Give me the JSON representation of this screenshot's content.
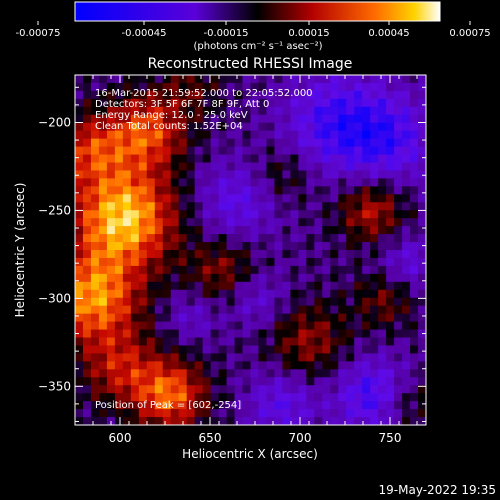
{
  "colorbar": {
    "ticks": [
      "-0.00075",
      "-0.00045",
      "-0.00015",
      "0.00015",
      "0.00045",
      "0.00075"
    ],
    "unit_label": "(photons cm⁻² s⁻¹ asec⁻²)"
  },
  "chart_data": {
    "type": "heatmap",
    "title": "Reconstructed RHESSI Image",
    "xlabel": "Heliocentric X (arcsec)",
    "ylabel": "Heliocentric Y (arcsec)",
    "xlim": [
      575,
      770
    ],
    "ylim": [
      -372,
      -173
    ],
    "x_ticks": [
      600,
      650,
      700,
      750
    ],
    "y_ticks": [
      -200,
      -250,
      -300,
      -350
    ],
    "color_range": [
      -0.00075,
      0.00075
    ],
    "annotations": [
      "16-Mar-2015 21:59:52.000 to 22:05:52.000",
      "Detectors: 3F 5F 6F 7F 8F 9F, Att 0",
      "Energy Range: 12.0 - 25.0 keV",
      "Clean     Total counts: 1.52E+04"
    ],
    "peak_label": "Position of Peak = [602,-254]",
    "peak": [
      602,
      -254
    ],
    "blobs": [
      {
        "x": 602,
        "y": -254,
        "a": 0.00075,
        "s": 20
      },
      {
        "x": 585,
        "y": -300,
        "a": 0.00062,
        "s": 18
      },
      {
        "x": 615,
        "y": -205,
        "a": 0.0005,
        "s": 15
      },
      {
        "x": 583,
        "y": -215,
        "a": 0.0004,
        "s": 14
      },
      {
        "x": 628,
        "y": -355,
        "a": 0.00055,
        "s": 14
      },
      {
        "x": 600,
        "y": -340,
        "a": 0.00035,
        "s": 15
      },
      {
        "x": 658,
        "y": -285,
        "a": 0.0003,
        "s": 14
      },
      {
        "x": 740,
        "y": -250,
        "a": 0.00038,
        "s": 13
      },
      {
        "x": 705,
        "y": -325,
        "a": 0.0003,
        "s": 16
      },
      {
        "x": 748,
        "y": -300,
        "a": 0.00025,
        "s": 12
      },
      {
        "x": 760,
        "y": -360,
        "a": 0.00022,
        "s": 10
      },
      {
        "x": 690,
        "y": -230,
        "a": 0.0002,
        "s": 12
      },
      {
        "x": 640,
        "y": -180,
        "a": 0.00018,
        "s": 12
      },
      {
        "x": 720,
        "y": -200,
        "a": -0.0004,
        "s": 20
      },
      {
        "x": 665,
        "y": -245,
        "a": -0.0003,
        "s": 16
      },
      {
        "x": 750,
        "y": -210,
        "a": -0.00035,
        "s": 18
      },
      {
        "x": 740,
        "y": -355,
        "a": -0.0004,
        "s": 15
      },
      {
        "x": 690,
        "y": -360,
        "a": -0.0003,
        "s": 14
      },
      {
        "x": 675,
        "y": -300,
        "a": -0.00025,
        "s": 12
      },
      {
        "x": 640,
        "y": -310,
        "a": -0.0002,
        "s": 10
      },
      {
        "x": 760,
        "y": -280,
        "a": -0.00025,
        "s": 12
      }
    ]
  },
  "footer": {
    "timestamp": "19-May-2022 19:35"
  }
}
